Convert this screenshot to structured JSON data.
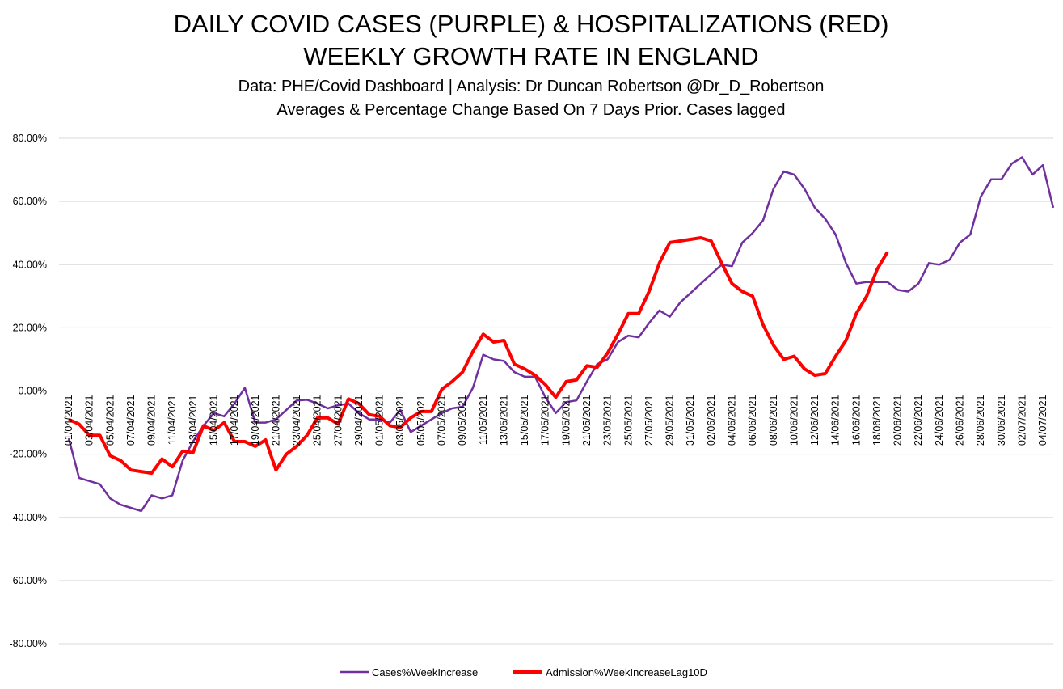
{
  "chart_data": {
    "type": "line",
    "title": "DAILY COVID CASES (PURPLE) & HOSPITALIZATIONS (RED)",
    "subtitle": "WEEKLY GROWTH RATE IN ENGLAND",
    "notes": [
      "Data: PHE/Covid Dashboard | Analysis: Dr Duncan Robertson @Dr_D_Robertson",
      "Averages & Percentage Change Based On 7 Days Prior. Cases lagged"
    ],
    "categories": [
      "01/04/2021",
      null,
      "03/04/2021",
      null,
      "05/04/2021",
      null,
      "07/04/2021",
      null,
      "09/04/2021",
      null,
      "11/04/2021",
      null,
      "13/04/2021",
      null,
      "15/04/2021",
      null,
      "17/04/2021",
      null,
      "19/04/2021",
      null,
      "21/04/2021",
      null,
      "23/04/2021",
      null,
      "25/04/2021",
      null,
      "27/04/2021",
      null,
      "29/04/2021",
      null,
      "01/05/2021",
      null,
      "03/05/2021",
      null,
      "05/05/2021",
      null,
      "07/05/2021",
      null,
      "09/05/2021",
      null,
      "11/05/2021",
      null,
      "13/05/2021",
      null,
      "15/05/2021",
      null,
      "17/05/2021",
      null,
      "19/05/2021",
      null,
      "21/05/2021",
      null,
      "23/05/2021",
      null,
      "25/05/2021",
      null,
      "27/05/2021",
      null,
      "29/05/2021",
      null,
      "31/05/2021",
      null,
      "02/06/2021",
      null,
      "04/06/2021",
      null,
      "06/06/2021",
      null,
      "08/06/2021",
      null,
      "10/06/2021",
      null,
      "12/06/2021",
      null,
      "14/06/2021",
      null,
      "16/06/2021",
      null,
      "18/06/2021",
      null,
      "20/06/2021",
      null,
      "22/06/2021",
      null,
      "24/06/2021",
      null,
      "26/06/2021",
      null,
      "28/06/2021",
      null,
      "30/06/2021",
      null,
      "02/07/2021",
      null,
      "04/07/2021",
      null
    ],
    "series": [
      {
        "name": "Cases%WeekIncrease",
        "color": "#7030a0",
        "width": 2.5,
        "values": [
          -15,
          -27.5,
          -28.5,
          -29.5,
          -34,
          -36,
          -37,
          -38,
          -33,
          -34,
          -33,
          -22,
          -16,
          -11,
          -7,
          -8,
          -4,
          1,
          -10,
          -10,
          -9,
          -6,
          -3,
          -2.8,
          -4,
          -5.5,
          -4.5,
          -4,
          -7,
          -9,
          -9,
          -10,
          -6,
          -13,
          -11,
          -9,
          -7,
          -5.5,
          -5,
          1,
          11.5,
          10,
          9.5,
          6,
          4.5,
          4.5,
          -2,
          -7,
          -3.5,
          -3,
          3,
          8.5,
          10,
          15.5,
          17.5,
          17,
          21.5,
          25.5,
          23.5,
          28,
          31,
          34,
          37,
          40,
          39.5,
          47,
          50,
          54,
          64,
          69.5,
          68.5,
          64,
          58,
          54.5,
          49.5,
          40.5,
          34,
          34.5,
          34.5,
          34.5,
          32,
          31.5,
          34,
          40.5,
          40,
          41.5,
          47,
          49.5,
          61.5,
          67,
          67,
          72,
          74,
          68.5,
          71.5,
          58
        ]
      },
      {
        "name": "Admission%WeekIncreaseLag10D",
        "color": "#ff0000",
        "width": 4,
        "values": [
          -9,
          -10.5,
          -14,
          -14,
          -20.5,
          -22,
          -25,
          -25.5,
          -26,
          -21.5,
          -24,
          -19,
          -19.5,
          -11,
          -12.5,
          -10,
          -16,
          -16,
          -17.5,
          -15.5,
          -25,
          -20,
          -17.5,
          -14,
          -8.5,
          -8.5,
          -10.5,
          -2.5,
          -4,
          -7.5,
          -8,
          -11,
          -11.5,
          -8.5,
          -6.5,
          -6.5,
          0.5,
          3,
          6,
          12.5,
          18,
          15.5,
          16,
          8.5,
          7,
          5,
          2,
          -2,
          3,
          3.5,
          8,
          7.5,
          12,
          18,
          24.5,
          24.5,
          31.5,
          40.5,
          47,
          47.5,
          48,
          48.5,
          47.5,
          40.5,
          34,
          31.5,
          30,
          21,
          14.5,
          10,
          11,
          7,
          5,
          5.5,
          11,
          16,
          24.5,
          30,
          38.5,
          44,
          null,
          null,
          null,
          null,
          null,
          null,
          null,
          null,
          null,
          null,
          null,
          null,
          null,
          null,
          null,
          null
        ]
      }
    ],
    "ylim": [
      -80,
      80
    ],
    "yticks": [
      {
        "value": -80,
        "label": "-80.00%"
      },
      {
        "value": -60,
        "label": "-60.00%"
      },
      {
        "value": -40,
        "label": "-40.00%"
      },
      {
        "value": -20,
        "label": "-20.00%"
      },
      {
        "value": 0,
        "label": "0.00%"
      },
      {
        "value": 20,
        "label": "20.00%"
      },
      {
        "value": 40,
        "label": "40.00%"
      },
      {
        "value": 60,
        "label": "60.00%"
      },
      {
        "value": 80,
        "label": "80.00%"
      }
    ],
    "grid": true,
    "legend": "bottom"
  }
}
